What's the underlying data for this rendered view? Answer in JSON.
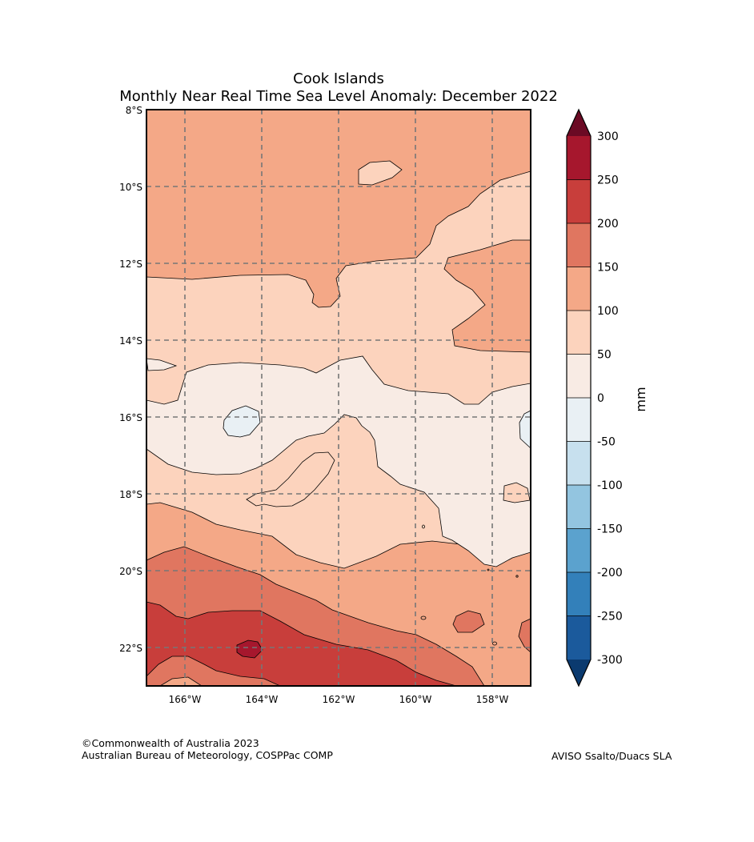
{
  "title": {
    "line1": "Cook Islands",
    "line2": "Monthly Near Real Time Sea Level Anomaly: December 2022"
  },
  "map": {
    "lat_labels": [
      "8°S",
      "10°S",
      "12°S",
      "14°S",
      "16°S",
      "18°S",
      "20°S",
      "22°S"
    ],
    "lon_labels": [
      "166°W",
      "164°W",
      "162°W",
      "160°W",
      "158°W"
    ],
    "extent": {
      "lon_min_w": 167.0,
      "lon_max_w": 157.0,
      "lat_min_s": 8.0,
      "lat_max_s": 23.0
    },
    "gridline_style": "dashed grey"
  },
  "colorbar": {
    "unit_label": "mm",
    "ticks": [
      "300",
      "250",
      "200",
      "150",
      "100",
      "50",
      "0",
      "-50",
      "-100",
      "-150",
      "-200",
      "-250",
      "-300"
    ],
    "levels_top_to_bottom": [
      {
        "range": "250 to 300",
        "color": "#a6172d"
      },
      {
        "range": "200 to 250",
        "color": "#c83e3b"
      },
      {
        "range": "150 to 200",
        "color": "#e07660"
      },
      {
        "range": "100 to 150",
        "color": "#f4a887"
      },
      {
        "range": "50 to 100",
        "color": "#fcd3bd"
      },
      {
        "range": "0 to 50",
        "color": "#f8ebe4"
      },
      {
        "range": "-50 to 0",
        "color": "#e9f0f4"
      },
      {
        "range": "-100 to -50",
        "color": "#c7e0ee"
      },
      {
        "range": "-150 to -100",
        "color": "#93c5e0"
      },
      {
        "range": "-200 to -150",
        "color": "#5ba2ce"
      },
      {
        "range": "-250 to -200",
        "color": "#3380ba"
      },
      {
        "range": "-300 to -250",
        "color": "#1b5a9c"
      }
    ],
    "over_color": "#6b0a24",
    "under_color": "#0b3a6f"
  },
  "footer": {
    "copyright": "©Commonwealth of Australia 2023",
    "agency": "Australian Bureau of Meteorology, COSPPac COMP",
    "source": "AVISO Ssalto/Duacs SLA"
  }
}
